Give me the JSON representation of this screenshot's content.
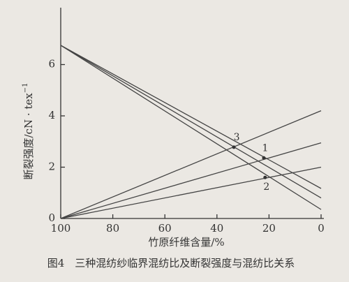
{
  "chart_data": {
    "type": "line",
    "x_label": "竹原纤维含量/%",
    "y_label": "断裂强度/cN · tex",
    "y_label_sup": "−1",
    "caption": "图4　三种混纺纱临界混纺比及断裂强度与混纺比关系",
    "x": [
      100,
      0
    ],
    "series": [
      {
        "color": "#444",
        "values": [
          0,
          4.2
        ]
      },
      {
        "color": "#444",
        "values": [
          0,
          2.95
        ]
      },
      {
        "color": "#444",
        "values": [
          0,
          2.0
        ]
      },
      {
        "color": "#444",
        "values": [
          6.75,
          1.17
        ]
      },
      {
        "color": "#444",
        "values": [
          6.75,
          0.8
        ]
      },
      {
        "color": "#444",
        "values": [
          6.75,
          0.35
        ]
      }
    ],
    "points": [
      {
        "label": "3",
        "x": 33.5,
        "y": 2.78
      },
      {
        "label": "1",
        "x": 22,
        "y": 2.36
      },
      {
        "label": "2",
        "x": 21.5,
        "y": 1.6
      }
    ],
    "xlim": [
      100,
      0
    ],
    "xticks": [
      100,
      80,
      60,
      40,
      20,
      0
    ],
    "ylim": [
      0,
      8
    ],
    "yticks": [
      0,
      2,
      4,
      6
    ]
  }
}
